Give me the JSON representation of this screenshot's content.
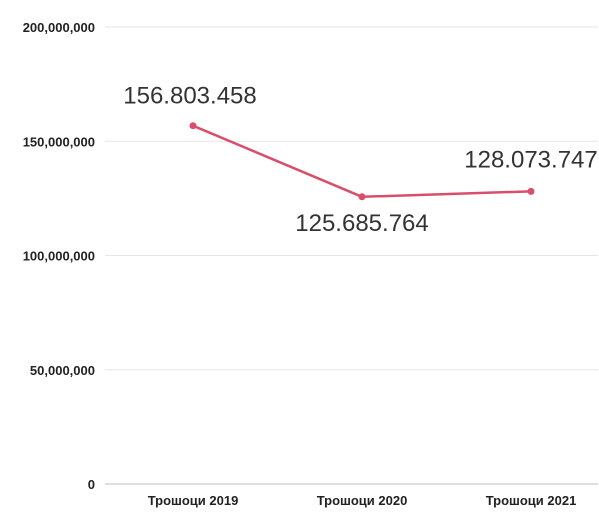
{
  "chart_data": {
    "type": "line",
    "categories": [
      "Трошоци 2019",
      "Трошоци 2020",
      "Трошоци 2021"
    ],
    "series": [
      {
        "values": [
          156803458,
          125685764,
          128073747
        ],
        "data_labels": [
          "156.803.458",
          "125.685.764",
          "128.073.747"
        ]
      }
    ],
    "y_ticks": [
      0,
      50000000,
      100000000,
      150000000,
      200000000
    ],
    "y_tick_labels": [
      "0",
      "50,000,000",
      "100,000,000",
      "150,000,000",
      "200,000,000"
    ],
    "ylim": [
      0,
      200000000
    ],
    "grid": true,
    "legend": "none",
    "title": "",
    "xlabel": "",
    "ylabel": "",
    "colors": {
      "line": "#d94f6b",
      "marker": "#d94f6b",
      "grid": "#e6e6e6"
    }
  }
}
